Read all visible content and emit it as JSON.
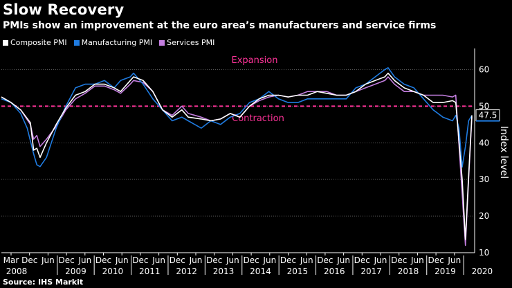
{
  "chart_data": {
    "type": "line",
    "title": "Slow Recovery",
    "subtitle": "PMIs show an improvement at the euro area’s manufacturers and service firms",
    "ylabel": "Index level",
    "ylim": [
      10,
      65
    ],
    "yticks": [
      10,
      20,
      30,
      40,
      50,
      60
    ],
    "threshold": 50,
    "annotations": {
      "above": "Expansion",
      "below": "Contraction"
    },
    "last_value_label": "47.5",
    "x_tick_labels": [
      "Mar",
      "Dec",
      "Jun",
      "Dec",
      "Jun",
      "Dec",
      "Jun",
      "Dec",
      "Jun",
      "Dec",
      "Jun",
      "Dec",
      "Jun",
      "Dec",
      "Jun",
      "Dec",
      "Jun",
      "Dec",
      "Jun",
      "Dec",
      "Jun",
      "Dec",
      "Jun",
      "Dec",
      "Jun"
    ],
    "year_labels": [
      "2008",
      "2009",
      "2010",
      "2011",
      "2012",
      "2013",
      "2014",
      "2015",
      "2016",
      "2017",
      "2018",
      "2019",
      "2020"
    ],
    "x_range": [
      0,
      146
    ],
    "series": [
      {
        "name": "Composite PMI",
        "color": "#ffffff",
        "points": [
          [
            0,
            52.5
          ],
          [
            3,
            51
          ],
          [
            6,
            49
          ],
          [
            9,
            45.5
          ],
          [
            10,
            38
          ],
          [
            11,
            38.5
          ],
          [
            12,
            36
          ],
          [
            14,
            40
          ],
          [
            17,
            45
          ],
          [
            20,
            49.5
          ],
          [
            23,
            53
          ],
          [
            26,
            54
          ],
          [
            29,
            56
          ],
          [
            32,
            56
          ],
          [
            35,
            55
          ],
          [
            37,
            54
          ],
          [
            40,
            57
          ],
          [
            41,
            58
          ],
          [
            44,
            57
          ],
          [
            47,
            54
          ],
          [
            50,
            49
          ],
          [
            53,
            47
          ],
          [
            56,
            49
          ],
          [
            58,
            47
          ],
          [
            62,
            46.5
          ],
          [
            65,
            46
          ],
          [
            68,
            46.5
          ],
          [
            71,
            48
          ],
          [
            74,
            47
          ],
          [
            77,
            50
          ],
          [
            80,
            52
          ],
          [
            83,
            53
          ],
          [
            86,
            53
          ],
          [
            89,
            52.5
          ],
          [
            92,
            53
          ],
          [
            95,
            53
          ],
          [
            98,
            54
          ],
          [
            101,
            53.5
          ],
          [
            104,
            53
          ],
          [
            107,
            53
          ],
          [
            110,
            54
          ],
          [
            113,
            56
          ],
          [
            116,
            57
          ],
          [
            119,
            58
          ],
          [
            120,
            59
          ],
          [
            122,
            57
          ],
          [
            125,
            55
          ],
          [
            128,
            54
          ],
          [
            131,
            53
          ],
          [
            134,
            51
          ],
          [
            137,
            51
          ],
          [
            140,
            51.5
          ],
          [
            141,
            51
          ],
          [
            143,
            30
          ],
          [
            144,
            13.6
          ],
          [
            145,
            31
          ],
          [
            146,
            47.5
          ]
        ]
      },
      {
        "name": "Manufacturing PMI",
        "color": "#1f7be0",
        "points": [
          [
            0,
            52
          ],
          [
            3,
            51
          ],
          [
            6,
            48
          ],
          [
            8,
            44
          ],
          [
            10,
            37
          ],
          [
            11,
            34
          ],
          [
            12,
            33.5
          ],
          [
            14,
            36
          ],
          [
            17,
            44
          ],
          [
            20,
            50
          ],
          [
            23,
            55
          ],
          [
            26,
            56
          ],
          [
            29,
            56
          ],
          [
            32,
            57
          ],
          [
            35,
            55
          ],
          [
            37,
            57
          ],
          [
            40,
            58
          ],
          [
            41,
            59
          ],
          [
            44,
            56
          ],
          [
            47,
            52
          ],
          [
            50,
            49
          ],
          [
            53,
            46
          ],
          [
            56,
            47
          ],
          [
            58,
            46
          ],
          [
            60,
            45
          ],
          [
            62,
            44
          ],
          [
            65,
            46
          ],
          [
            68,
            45
          ],
          [
            71,
            47
          ],
          [
            74,
            48
          ],
          [
            77,
            51
          ],
          [
            80,
            52
          ],
          [
            83,
            54
          ],
          [
            86,
            52
          ],
          [
            89,
            51
          ],
          [
            92,
            51
          ],
          [
            95,
            52
          ],
          [
            98,
            52
          ],
          [
            101,
            52
          ],
          [
            104,
            52
          ],
          [
            107,
            52
          ],
          [
            110,
            55
          ],
          [
            113,
            56
          ],
          [
            116,
            58
          ],
          [
            119,
            60
          ],
          [
            120,
            60.5
          ],
          [
            122,
            58
          ],
          [
            125,
            56
          ],
          [
            128,
            55
          ],
          [
            131,
            52
          ],
          [
            134,
            49
          ],
          [
            137,
            47
          ],
          [
            140,
            46
          ],
          [
            141,
            47.5
          ],
          [
            142,
            44
          ],
          [
            143,
            33.4
          ],
          [
            144,
            39
          ],
          [
            145,
            46
          ],
          [
            146,
            47.5
          ]
        ]
      },
      {
        "name": "Services PMI",
        "color": "#c47fe0",
        "points": [
          [
            0,
            52.5
          ],
          [
            3,
            51
          ],
          [
            6,
            49
          ],
          [
            9,
            45
          ],
          [
            10,
            41
          ],
          [
            11,
            42
          ],
          [
            12,
            39
          ],
          [
            14,
            41
          ],
          [
            17,
            44.5
          ],
          [
            20,
            49
          ],
          [
            23,
            52
          ],
          [
            26,
            53.5
          ],
          [
            29,
            55.5
          ],
          [
            32,
            55.5
          ],
          [
            35,
            54.5
          ],
          [
            37,
            53.5
          ],
          [
            40,
            56
          ],
          [
            41,
            57
          ],
          [
            44,
            56.5
          ],
          [
            47,
            54
          ],
          [
            50,
            49
          ],
          [
            53,
            47.5
          ],
          [
            56,
            50
          ],
          [
            58,
            48
          ],
          [
            62,
            47
          ],
          [
            65,
            46
          ],
          [
            68,
            46.5
          ],
          [
            71,
            48
          ],
          [
            74,
            47
          ],
          [
            77,
            50
          ],
          [
            80,
            51.5
          ],
          [
            83,
            52.5
          ],
          [
            86,
            53
          ],
          [
            89,
            52.5
          ],
          [
            92,
            53
          ],
          [
            95,
            54
          ],
          [
            98,
            54
          ],
          [
            101,
            54
          ],
          [
            104,
            53
          ],
          [
            107,
            53
          ],
          [
            110,
            54
          ],
          [
            113,
            55
          ],
          [
            116,
            56
          ],
          [
            119,
            57
          ],
          [
            120,
            58
          ],
          [
            122,
            56
          ],
          [
            125,
            54
          ],
          [
            128,
            54
          ],
          [
            131,
            53
          ],
          [
            134,
            53
          ],
          [
            137,
            53
          ],
          [
            140,
            52.5
          ],
          [
            141,
            53
          ],
          [
            143,
            26
          ],
          [
            144,
            12
          ],
          [
            145,
            30
          ],
          [
            146,
            47
          ]
        ]
      }
    ],
    "source": "Source: IHS Markit"
  }
}
